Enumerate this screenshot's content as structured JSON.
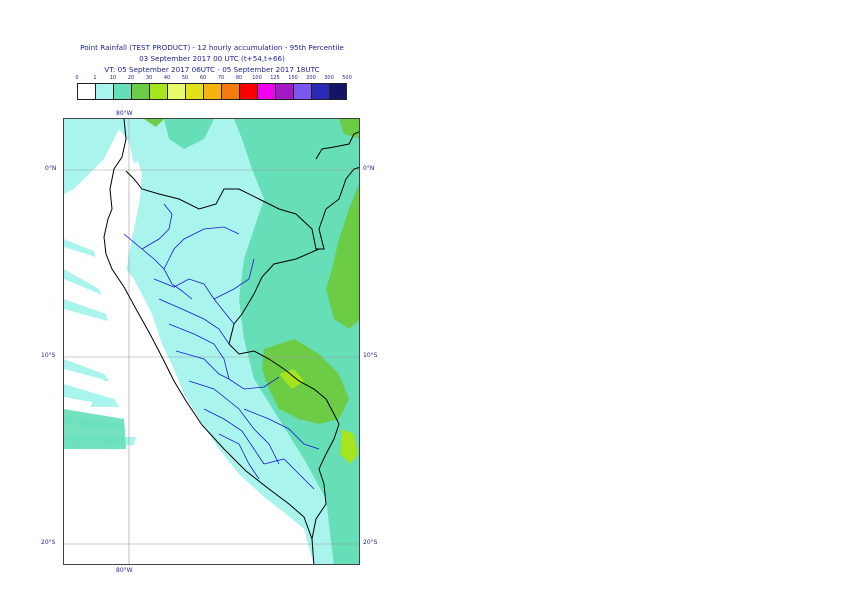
{
  "title": {
    "line1": "Point Rainfall (TEST PRODUCT) - 12 hourly accumulation - 95th Percentile",
    "line2": "03 September 2017 00 UTC (t+54,t+66)",
    "line3": "VT: 05 September 2017 06UTC - 05 September 2017 18UTC"
  },
  "legend": {
    "ticks": [
      "0",
      "1",
      "10",
      "20",
      "30",
      "40",
      "50",
      "60",
      "70",
      "80",
      "100",
      "125",
      "150",
      "200",
      "300",
      "500"
    ],
    "colors": [
      "#ffffff",
      "#aaf4ee",
      "#66dfb8",
      "#6ccc46",
      "#a6e41e",
      "#e6fa6c",
      "#e2e21c",
      "#f6b20e",
      "#f67a12",
      "#fa0000",
      "#f200f0",
      "#a418c8",
      "#7a58f0",
      "#2a2ab4",
      "#141464"
    ]
  },
  "map": {
    "lon_labels": {
      "top": "80°W",
      "bottom": "80°W"
    },
    "lat_labels": {
      "left_0": "0°N",
      "right_0": "0°N",
      "left_10": "10°S",
      "right_10": "10°S",
      "left_20": "20°S",
      "right_20": "20°S"
    },
    "colors": {
      "ocean": "#ffffff",
      "light_rain": "#aaf4ee",
      "moderate_rain": "#66dfb8",
      "heavy_rain": "#6ccc46",
      "very_heavy_rain": "#a6e41e",
      "border": "#000000",
      "regions": "#1a1acc",
      "grid": "#9a9a9a"
    }
  }
}
